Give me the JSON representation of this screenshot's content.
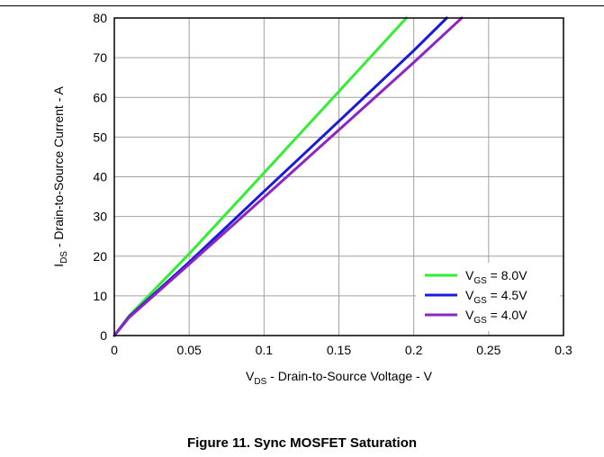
{
  "caption": "Figure 11. Sync MOSFET Saturation",
  "chart_data": {
    "type": "line",
    "title": "",
    "xlabel": {
      "main": "V",
      "sub": "DS",
      "rest": " - Drain-to-Source Voltage - V"
    },
    "ylabel": {
      "main": "I",
      "sub": "DS",
      "rest": " - Drain-to-Source Current - A"
    },
    "xlim": [
      0,
      0.3
    ],
    "ylim": [
      0,
      80
    ],
    "xticks": [
      0,
      0.05,
      0.1,
      0.15,
      0.2,
      0.25,
      0.3
    ],
    "xtick_labels": [
      "0",
      "0.05",
      "0.1",
      "0.15",
      "0.2",
      "0.25",
      "0.3"
    ],
    "yticks": [
      0,
      10,
      20,
      30,
      40,
      50,
      60,
      70,
      80
    ],
    "ytick_labels": [
      "0",
      "10",
      "20",
      "30",
      "40",
      "50",
      "60",
      "70",
      "80"
    ],
    "grid": true,
    "legend_position": "bottom-right",
    "series": [
      {
        "name_main": "V",
        "name_sub": "GS",
        "name_rest": " = 8.0V",
        "color": "#33ee33",
        "x": [
          0,
          0.01,
          0.05,
          0.1,
          0.15,
          0.195
        ],
        "y": [
          0,
          5,
          20.6,
          41,
          61.5,
          80
        ]
      },
      {
        "name_main": "V",
        "name_sub": "GS",
        "name_rest": " = 4.5V",
        "color": "#1a1adb",
        "x": [
          0,
          0.01,
          0.05,
          0.1,
          0.15,
          0.2,
          0.222
        ],
        "y": [
          0,
          4.8,
          18.5,
          36.3,
          54,
          71.8,
          80
        ]
      },
      {
        "name_main": "V",
        "name_sub": "GS",
        "name_rest": " = 4.0V",
        "color": "#8e24c2",
        "x": [
          0,
          0.01,
          0.05,
          0.1,
          0.15,
          0.2,
          0.232
        ],
        "y": [
          0,
          4.6,
          18,
          34.8,
          51.8,
          68.8,
          80
        ]
      }
    ]
  }
}
